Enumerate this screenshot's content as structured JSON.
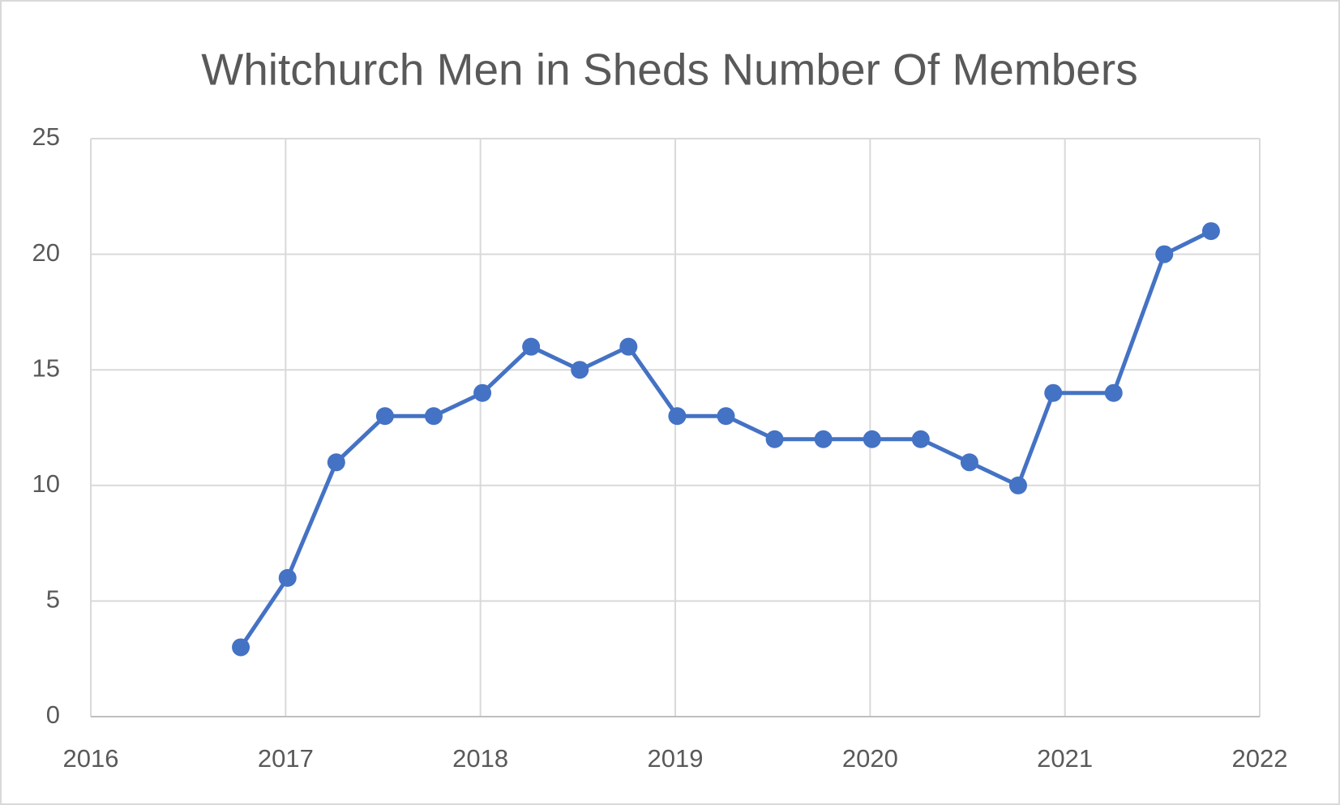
{
  "chart_data": {
    "type": "line",
    "title": "Whitchurch Men in Sheds Number Of Members",
    "x": [
      2016.77,
      2017.01,
      2017.26,
      2017.51,
      2017.76,
      2018.01,
      2018.26,
      2018.51,
      2018.76,
      2019.01,
      2019.26,
      2019.51,
      2019.76,
      2020.01,
      2020.26,
      2020.51,
      2020.76,
      2020.94,
      2021.25,
      2021.51,
      2021.75
    ],
    "values": [
      3,
      6,
      11,
      13,
      13,
      14,
      16,
      15,
      16,
      13,
      13,
      12,
      12,
      12,
      12,
      11,
      10,
      14,
      14,
      20,
      21
    ],
    "color": "#4472c4",
    "xlim": [
      2016,
      2022
    ],
    "xticks": [
      2016,
      2017,
      2018,
      2019,
      2020,
      2021,
      2022
    ],
    "ylim": [
      0,
      25
    ],
    "yticks": [
      0,
      5,
      10,
      15,
      20,
      25
    ],
    "grid": true
  }
}
